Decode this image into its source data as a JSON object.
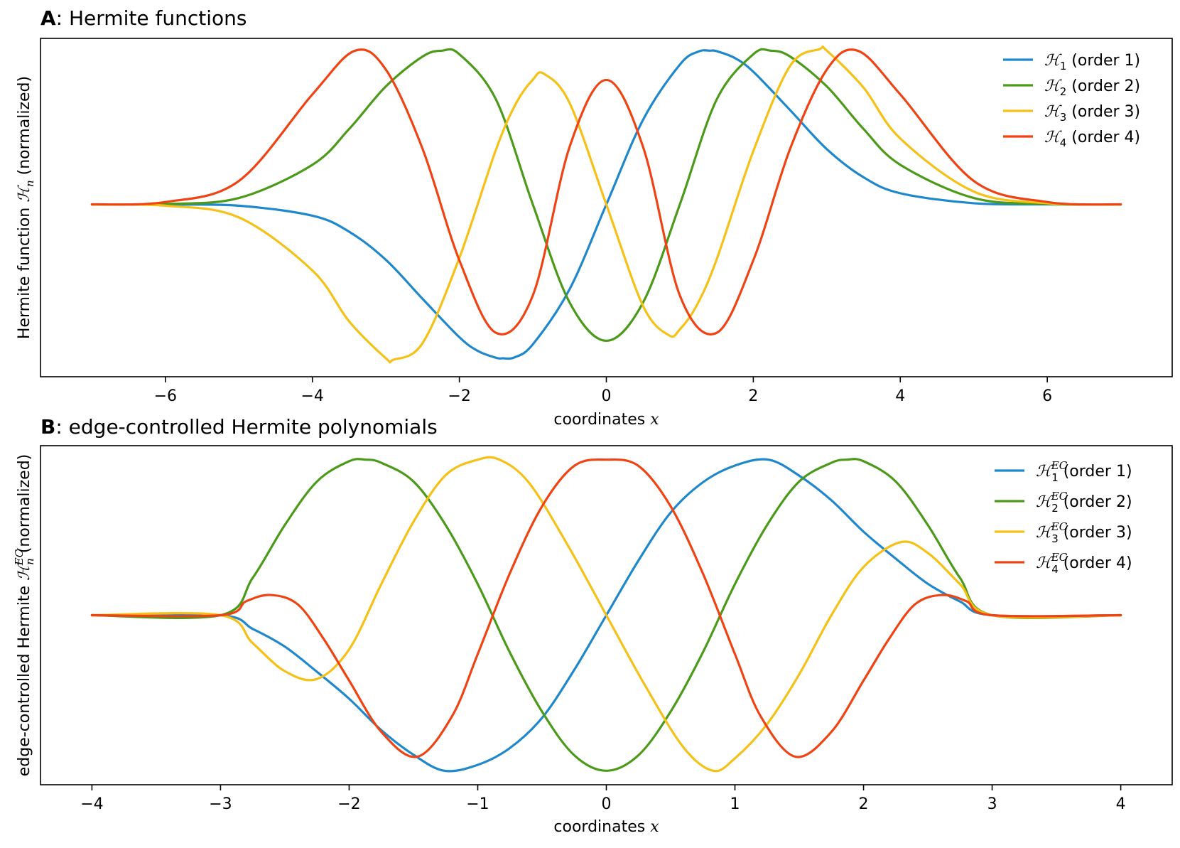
{
  "chart_data": [
    {
      "type": "line",
      "panel_letter": "A",
      "title": ": Hermite functions",
      "xlabel": "coordinates ",
      "xlabel_var": "x",
      "ylabel": "Hermite function ",
      "ylabel_symbol": "ℋ",
      "ylabel_sub": "n",
      "ylabel_sup": "",
      "ylabel_suffix": " (normalized)",
      "xlim": [
        -7.7,
        7.7
      ],
      "ylim": [
        -1.12,
        1.08
      ],
      "xticks": [
        -6,
        -4,
        -2,
        0,
        2,
        4,
        6
      ],
      "xtick_labels": [
        "−6",
        "−4",
        "−2",
        "0",
        "2",
        "4",
        "6"
      ],
      "legend_position": "top-right",
      "series": [
        {
          "name": "(order 1)",
          "symbol": "ℋ",
          "sub": "1",
          "sup": "",
          "color": "#1f88cc",
          "x": [
            -7,
            -6,
            -5,
            -4,
            -3.5,
            -3,
            -2.5,
            -2,
            -1.75,
            -1.5,
            -1.414,
            -1.25,
            -1,
            -0.5,
            0,
            0.5,
            1,
            1.25,
            1.414,
            1.5,
            1.75,
            2,
            2.5,
            3,
            3.5,
            4,
            5,
            6,
            7
          ],
          "y": [
            0,
            -0.0006,
            -0.008,
            -0.073,
            -0.177,
            -0.36,
            -0.614,
            -0.863,
            -0.952,
            -0.997,
            -1.0,
            -0.994,
            -0.909,
            -0.551,
            0,
            0.551,
            0.909,
            0.994,
            1.0,
            0.997,
            0.952,
            0.863,
            0.614,
            0.36,
            0.177,
            0.073,
            0.008,
            0.0006,
            0
          ]
        },
        {
          "name": "(order 2)",
          "symbol": "ℋ",
          "sub": "2",
          "sup": "",
          "color": "#4c9a1a",
          "x": [
            -7,
            -6,
            -5,
            -4,
            -3.5,
            -3,
            -2.5,
            -2.236,
            -2,
            -1.5,
            -1,
            -0.5,
            0,
            0.5,
            1,
            1.5,
            2,
            2.236,
            2.5,
            3,
            3.5,
            4,
            5,
            6,
            7
          ],
          "y": [
            0.0001,
            0.003,
            0.042,
            0.258,
            0.491,
            0.768,
            0.962,
            1.0,
            0.977,
            0.681,
            0,
            -0.637,
            -0.886,
            -0.637,
            0,
            0.681,
            0.977,
            1.0,
            0.962,
            0.768,
            0.491,
            0.258,
            0.042,
            0.003,
            0.0001
          ],
          "ylim_note": ""
        },
        {
          "name": "(order 3)",
          "symbol": "ℋ",
          "sub": "3",
          "sup": "",
          "color": "#f5c116",
          "x": [
            -7,
            -6,
            -5,
            -4,
            -3.5,
            -3,
            -2.9,
            -2.5,
            -2,
            -1.5,
            -1.225,
            -1,
            -0.85,
            -0.5,
            0,
            0.5,
            0.85,
            1,
            1.225,
            1.5,
            2,
            2.5,
            2.9,
            3,
            3.5,
            4,
            5,
            6,
            7
          ],
          "y": [
            -0.0003,
            -0.008,
            -0.084,
            -0.429,
            -0.76,
            -1.0,
            -1.01,
            -0.901,
            -0.347,
            0.359,
            0.661,
            0.812,
            0.85,
            0.66,
            0,
            -0.66,
            -0.85,
            -0.812,
            -0.661,
            -0.359,
            0.347,
            0.901,
            1.01,
            1.0,
            0.76,
            0.429,
            0.084,
            0.008,
            0.0003
          ]
        },
        {
          "name": "(order 4)",
          "symbol": "ℋ",
          "sub": "4",
          "sup": "",
          "color": "#f04314",
          "x": [
            -7,
            -6,
            -5,
            -4,
            -3.42,
            -3,
            -2.5,
            -2,
            -1.5,
            -1,
            -0.5,
            0,
            0.5,
            1,
            1.5,
            2,
            2.5,
            3,
            3.42,
            4,
            5,
            6,
            7
          ],
          "y": [
            0.0008,
            0.016,
            0.153,
            0.716,
            1.0,
            0.877,
            0.361,
            -0.363,
            -0.835,
            -0.591,
            0.374,
            0.81,
            0.374,
            -0.591,
            -0.835,
            -0.363,
            0.361,
            0.877,
            1.0,
            0.716,
            0.153,
            0.016,
            0.0008
          ]
        }
      ]
    },
    {
      "type": "line",
      "panel_letter": "B",
      "title": ": edge-controlled Hermite polynomials",
      "xlabel": "coordinates ",
      "xlabel_var": "x",
      "ylabel": "edge-controlled Hermite ",
      "ylabel_symbol": "ℋ",
      "ylabel_sub": "n",
      "ylabel_sup": "EC",
      "ylabel_suffix": " (normalized)",
      "xlim": [
        -4.4,
        4.4
      ],
      "ylim": [
        -1.09,
        1.09
      ],
      "xticks": [
        -4,
        -3,
        -2,
        -1,
        0,
        1,
        2,
        3,
        4
      ],
      "xtick_labels": [
        "−4",
        "−3",
        "−2",
        "−1",
        "0",
        "1",
        "2",
        "3",
        "4"
      ],
      "legend_position": "top-right",
      "series": [
        {
          "name": "(order 1)",
          "symbol": "ℋ",
          "sub": "1",
          "sup": "EC",
          "color": "#1f88cc",
          "x": [
            -4,
            -3,
            -2.75,
            -2.5,
            -2.25,
            -2,
            -1.75,
            -1.5,
            -1.26,
            -1,
            -0.75,
            -0.5,
            -0.25,
            0,
            0.25,
            0.5,
            0.75,
            1,
            1.26,
            1.5,
            1.75,
            2,
            2.25,
            2.5,
            2.75,
            3,
            4
          ],
          "y": [
            0,
            0,
            -0.088,
            -0.202,
            -0.364,
            -0.537,
            -0.739,
            -0.897,
            -1.0,
            -0.962,
            -0.854,
            -0.66,
            -0.352,
            0,
            0.352,
            0.66,
            0.854,
            0.962,
            1.0,
            0.897,
            0.739,
            0.537,
            0.364,
            0.202,
            0.088,
            0,
            0
          ]
        },
        {
          "name": "(order 2)",
          "symbol": "ℋ",
          "sub": "2",
          "sup": "EC",
          "color": "#4c9a1a",
          "x": [
            -4,
            -3,
            -2.75,
            -2.5,
            -2.25,
            -2,
            -1.87,
            -1.75,
            -1.5,
            -1.25,
            -1,
            -0.75,
            -0.5,
            -0.25,
            0,
            0.25,
            0.5,
            0.75,
            1,
            1.25,
            1.5,
            1.75,
            1.87,
            2,
            2.25,
            2.5,
            2.75,
            3,
            4
          ],
          "y": [
            0,
            0,
            0.24,
            0.58,
            0.86,
            0.99,
            1.0,
            0.98,
            0.86,
            0.58,
            0.2,
            -0.24,
            -0.62,
            -0.9,
            -1.0,
            -0.9,
            -0.62,
            -0.24,
            0.2,
            0.58,
            0.86,
            0.98,
            1.0,
            0.99,
            0.86,
            0.58,
            0.24,
            0,
            0
          ]
        },
        {
          "name": "(order 3)",
          "symbol": "ℋ",
          "sub": "3",
          "sup": "EC",
          "color": "#f5c116",
          "x": [
            -4,
            -3,
            -2.75,
            -2.5,
            -2.25,
            -2,
            -1.75,
            -1.5,
            -1.25,
            -1,
            -0.83,
            -0.6,
            -0.3,
            0,
            0.3,
            0.6,
            0.83,
            1,
            1.25,
            1.5,
            1.75,
            2,
            2.29,
            2.5,
            2.75,
            3,
            4
          ],
          "y": [
            0,
            0,
            -0.18,
            -0.36,
            -0.41,
            -0.22,
            0.2,
            0.6,
            0.9,
            1.0,
            1.0,
            0.85,
            0.45,
            0,
            -0.45,
            -0.85,
            -1.0,
            -0.92,
            -0.7,
            -0.38,
            0,
            0.31,
            0.47,
            0.4,
            0.2,
            0,
            0
          ]
        },
        {
          "name": "(order 4)",
          "symbol": "ℋ",
          "sub": "4",
          "sup": "EC",
          "color": "#f04314",
          "x": [
            -4,
            -3,
            -2.8,
            -2.61,
            -2.4,
            -2.2,
            -2,
            -1.75,
            -1.47,
            -1.2,
            -1,
            -0.75,
            -0.5,
            -0.25,
            0,
            0.25,
            0.5,
            0.75,
            1,
            1.2,
            1.47,
            1.75,
            2,
            2.2,
            2.4,
            2.61,
            2.8,
            3,
            4
          ],
          "y": [
            0,
            0,
            0.09,
            0.13,
            0.07,
            -0.15,
            -0.42,
            -0.75,
            -0.91,
            -0.65,
            -0.25,
            0.27,
            0.7,
            0.96,
            1.0,
            0.96,
            0.7,
            0.27,
            -0.25,
            -0.65,
            -0.91,
            -0.75,
            -0.42,
            -0.15,
            0.07,
            0.13,
            0.09,
            0,
            0
          ]
        }
      ]
    }
  ]
}
